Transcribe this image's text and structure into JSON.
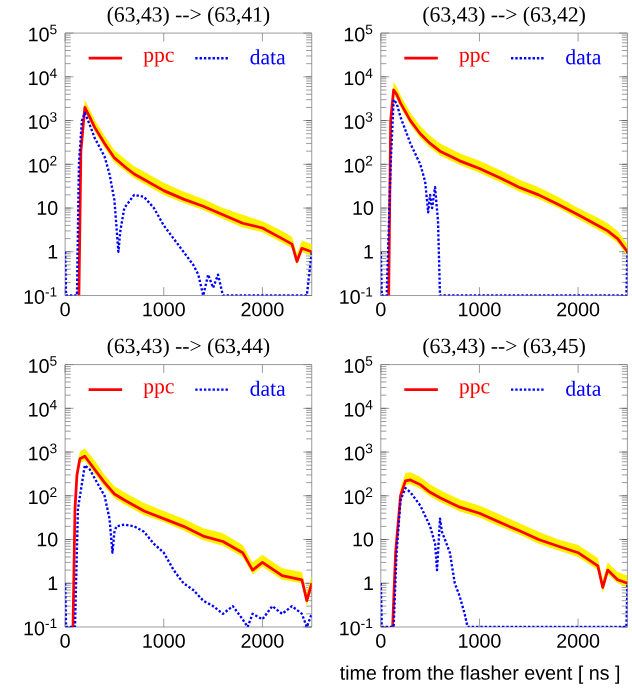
{
  "chart_data": [
    {
      "type": "line",
      "title": "(63,43) --> (63,41)",
      "xlim": [
        0,
        2500
      ],
      "xticks": [
        0,
        1000,
        2000
      ],
      "ylim": [
        0.1,
        100000
      ],
      "log": "y",
      "legend": "top",
      "marker": "none",
      "yticks": [
        {
          "value": 0.1,
          "label": "10$^{-1}$"
        },
        1,
        10,
        {
          "value": 100,
          "label": "10$^{2}$"
        },
        {
          "value": 1000,
          "label": "10$^{3}$"
        },
        {
          "value": 10000,
          "label": "10$^{4}$"
        },
        {
          "value": 100000,
          "label": "10$^{5}$"
        }
      ],
      "series": [
        {
          "name": "ppc",
          "color": "#ff0000",
          "line_style": "solid",
          "x": [
            140,
            160,
            200,
            250,
            300,
            400,
            500,
            600,
            700,
            800,
            1000,
            1200,
            1400,
            1600,
            1800,
            2000,
            2200,
            2300,
            2350,
            2400,
            2500
          ],
          "values": [
            0.1,
            200,
            2000,
            1200,
            700,
            300,
            140,
            90,
            60,
            45,
            25,
            16,
            11,
            7,
            4.5,
            3.5,
            2,
            1.5,
            0.6,
            1.2,
            1
          ],
          "upper": [
            0.15,
            300,
            3000,
            1800,
            1050,
            450,
            210,
            135,
            90,
            68,
            38,
            24,
            16,
            10,
            7,
            5,
            3,
            2.2,
            0.9,
            1.8,
            1.5
          ],
          "lower": [
            0.1,
            160,
            1600,
            960,
            560,
            240,
            110,
            72,
            48,
            36,
            20,
            13,
            9,
            5.6,
            3.6,
            2.8,
            1.6,
            1.2,
            0.5,
            1,
            0.8
          ]
        },
        {
          "name": "data",
          "color": "#0000ff",
          "line_style": "dotted",
          "x": [
            0,
            10,
            120,
            140,
            170,
            200,
            250,
            300,
            400,
            450,
            500,
            540,
            560,
            600,
            700,
            800,
            900,
            1000,
            1100,
            1200,
            1300,
            1350,
            1400,
            1450,
            1500,
            1550,
            1600,
            2450,
            2500
          ],
          "values": [
            1,
            0.1,
            0.1,
            100,
            1000,
            1500,
            800,
            400,
            150,
            60,
            15,
            1,
            3,
            10,
            20,
            18,
            10,
            4,
            2,
            1,
            0.5,
            0.3,
            0.1,
            0.3,
            0.15,
            0.3,
            0.1,
            0.1,
            1
          ]
        }
      ]
    },
    {
      "type": "line",
      "title": "(63,43) --> (63,42)",
      "xlim": [
        0,
        2500
      ],
      "xticks": [
        0,
        1000,
        2000
      ],
      "ylim": [
        0.1,
        100000
      ],
      "log": "y",
      "legend": "top",
      "marker": "none",
      "yticks": [
        {
          "value": 0.1,
          "label": "10$^{-1}$"
        },
        1,
        10,
        {
          "value": 100,
          "label": "10$^{2}$"
        },
        {
          "value": 1000,
          "label": "10$^{3}$"
        },
        {
          "value": 10000,
          "label": "10$^{4}$"
        },
        {
          "value": 100000,
          "label": "10$^{5}$"
        }
      ],
      "series": [
        {
          "name": "ppc",
          "color": "#ff0000",
          "line_style": "solid",
          "x": [
            80,
            100,
            130,
            160,
            200,
            300,
            400,
            500,
            600,
            800,
            1000,
            1200,
            1400,
            1600,
            1800,
            2000,
            2200,
            2300,
            2400,
            2500
          ],
          "values": [
            0.1,
            1000,
            5000,
            4000,
            2500,
            1000,
            500,
            300,
            200,
            120,
            80,
            50,
            30,
            20,
            12,
            7,
            4,
            3,
            2,
            1
          ],
          "upper": [
            0.15,
            1500,
            7500,
            6000,
            3800,
            1500,
            750,
            450,
            300,
            180,
            120,
            75,
            45,
            30,
            18,
            10,
            6,
            4.5,
            3,
            1.5
          ],
          "lower": [
            0.1,
            800,
            4000,
            3200,
            2000,
            800,
            400,
            240,
            160,
            96,
            64,
            40,
            24,
            16,
            10,
            5.6,
            3.2,
            2.4,
            1.6,
            0.8
          ]
        },
        {
          "name": "data",
          "color": "#0000ff",
          "line_style": "dotted",
          "x": [
            0,
            10,
            60,
            100,
            130,
            160,
            200,
            300,
            400,
            450,
            480,
            500,
            520,
            550,
            580,
            600,
            620,
            2490,
            2500
          ],
          "values": [
            1,
            0.1,
            0.1,
            100,
            3000,
            2500,
            1200,
            300,
            100,
            40,
            8,
            20,
            10,
            30,
            5,
            0.1,
            0.1,
            0.1,
            1
          ]
        }
      ]
    },
    {
      "type": "line",
      "title": "(63,43) --> (63,44)",
      "xlim": [
        0,
        2500
      ],
      "xticks": [
        0,
        1000,
        2000
      ],
      "ylim": [
        0.1,
        100000
      ],
      "log": "y",
      "legend": "top",
      "marker": "none",
      "yticks": [
        {
          "value": 0.1,
          "label": "10$^{-1}$"
        },
        1,
        10,
        {
          "value": 100,
          "label": "10$^{2}$"
        },
        {
          "value": 1000,
          "label": "10$^{3}$"
        },
        {
          "value": 10000,
          "label": "10$^{4}$"
        },
        {
          "value": 100000,
          "label": "10$^{5}$"
        }
      ],
      "series": [
        {
          "name": "ppc",
          "color": "#ff0000",
          "line_style": "solid",
          "x": [
            80,
            100,
            120,
            150,
            200,
            300,
            400,
            500,
            600,
            800,
            1000,
            1200,
            1400,
            1600,
            1800,
            1900,
            2000,
            2200,
            2400,
            2450,
            2500
          ],
          "values": [
            0.1,
            50,
            300,
            700,
            800,
            400,
            200,
            110,
            80,
            45,
            30,
            20,
            12,
            9,
            5,
            2,
            3,
            1.5,
            1.2,
            0.4,
            1
          ],
          "upper": [
            0.15,
            75,
            450,
            1050,
            1200,
            650,
            300,
            165,
            120,
            68,
            45,
            30,
            18,
            14,
            7.5,
            3,
            4.5,
            2.2,
            1.8,
            0.6,
            1.5
          ],
          "lower": [
            0.1,
            40,
            240,
            560,
            640,
            320,
            160,
            88,
            64,
            36,
            25,
            16,
            9.6,
            7.2,
            4,
            1.6,
            2.4,
            1.2,
            1,
            0.3,
            0.8
          ]
        },
        {
          "name": "data",
          "color": "#0000ff",
          "line_style": "dotted",
          "x": [
            0,
            10,
            100,
            130,
            200,
            250,
            300,
            400,
            450,
            480,
            500,
            520,
            600,
            700,
            800,
            900,
            1000,
            1100,
            1200,
            1300,
            1400,
            1500,
            1600,
            1700,
            1800,
            1850,
            1900,
            2000,
            2100,
            2200,
            2300,
            2400,
            2450,
            2500
          ],
          "values": [
            1,
            0.1,
            0.1,
            50,
            500,
            400,
            250,
            100,
            30,
            5,
            15,
            20,
            22,
            20,
            15,
            8,
            5,
            2,
            1,
            0.7,
            0.4,
            0.3,
            0.2,
            0.3,
            0.15,
            0.1,
            0.2,
            0.15,
            0.3,
            0.2,
            0.3,
            0.2,
            0.1,
            0.2
          ]
        }
      ]
    },
    {
      "type": "line",
      "title": "(63,43) --> (63,45)",
      "xlabel": "time from the flasher event [ ns ]",
      "xlim": [
        0,
        2500
      ],
      "xticks": [
        0,
        1000,
        2000
      ],
      "ylim": [
        0.1,
        100000
      ],
      "log": "y",
      "legend": "top",
      "marker": "none",
      "yticks": [
        {
          "value": 0.1,
          "label": "10$^{-1}$"
        },
        1,
        10,
        {
          "value": 100,
          "label": "10$^{2}$"
        },
        {
          "value": 1000,
          "label": "10$^{3}$"
        },
        {
          "value": 10000,
          "label": "10$^{4}$"
        },
        {
          "value": 100000,
          "label": "10$^{5}$"
        }
      ],
      "series": [
        {
          "name": "ppc",
          "color": "#ff0000",
          "line_style": "solid",
          "x": [
            120,
            150,
            200,
            250,
            300,
            400,
            500,
            600,
            800,
            1000,
            1200,
            1400,
            1600,
            1800,
            2000,
            2200,
            2250,
            2300,
            2400,
            2500
          ],
          "values": [
            0.1,
            5,
            100,
            220,
            230,
            180,
            120,
            90,
            55,
            40,
            25,
            16,
            10,
            7,
            5,
            2.5,
            0.8,
            2,
            1.2,
            1
          ],
          "upper": [
            0.15,
            7.5,
            150,
            330,
            345,
            270,
            180,
            135,
            82,
            60,
            38,
            24,
            15,
            10,
            7.5,
            3.8,
            1.2,
            3,
            1.8,
            1.5
          ],
          "lower": [
            0.1,
            4,
            80,
            176,
            184,
            144,
            96,
            72,
            44,
            32,
            20,
            13,
            8,
            5.6,
            4,
            2,
            0.6,
            1.6,
            1,
            0.8
          ]
        },
        {
          "name": "data",
          "color": "#0000ff",
          "line_style": "dotted",
          "x": [
            0,
            10,
            130,
            160,
            200,
            250,
            300,
            400,
            500,
            550,
            570,
            600,
            620,
            650,
            700,
            750,
            800,
            850,
            880,
            900,
            2490,
            2500
          ],
          "values": [
            1,
            0.1,
            0.1,
            5,
            80,
            150,
            120,
            60,
            20,
            8,
            2,
            30,
            15,
            10,
            5,
            1,
            0.5,
            0.2,
            0.1,
            0.1,
            0.1,
            1
          ]
        }
      ]
    }
  ]
}
